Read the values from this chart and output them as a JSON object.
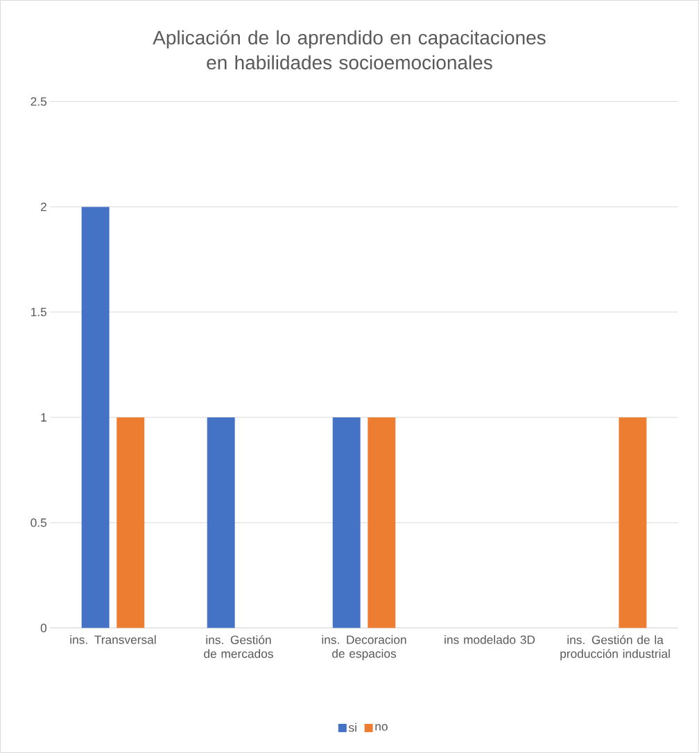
{
  "chart_data": {
    "type": "bar",
    "title": "Aplicación de lo aprendido en capacitaciones en habilidades socioemocionales",
    "categories": [
      "ins. Transversal",
      "ins. Gestión de mercados",
      "ins. Decoracion de espacios",
      "ins modelado 3D",
      "ins. Gestión de la producción industrial"
    ],
    "series": [
      {
        "name": "si",
        "color": "#4472c4",
        "values": [
          2,
          1,
          1,
          0,
          0
        ]
      },
      {
        "name": "no",
        "color": "#ed7d31",
        "values": [
          1,
          0,
          1,
          0,
          1
        ]
      }
    ],
    "ylim": [
      0,
      2.5
    ],
    "yticks": [
      0,
      0.5,
      1,
      1.5,
      2,
      2.5
    ],
    "grid": "y",
    "legend": "bottom"
  }
}
